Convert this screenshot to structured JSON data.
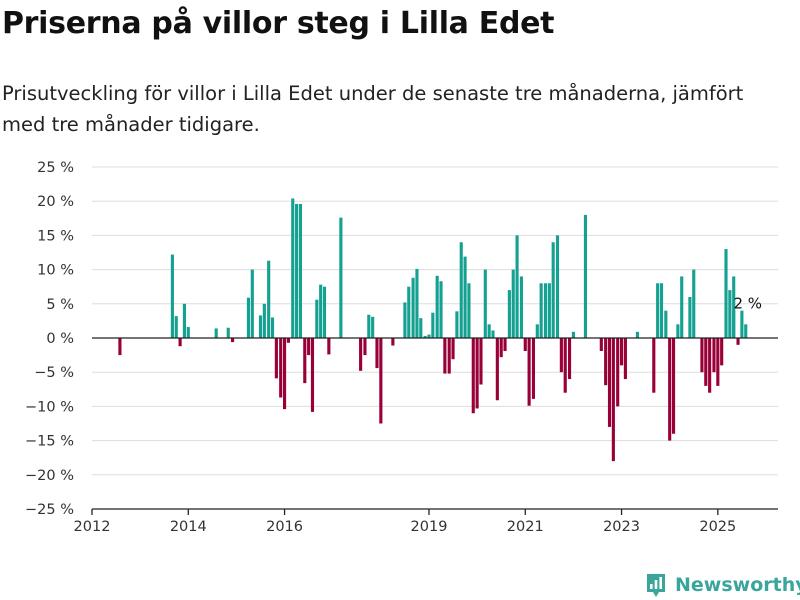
{
  "title": "Priserna på villor steg i Lilla Edet",
  "subtitle": "Prisutveckling för villor i Lilla Edet under de senaste tre månaderna, jämfört med tre månader tidigare.",
  "brand": {
    "name": "Newsworthy",
    "icon": "newsworthy-logo-icon"
  },
  "colors": {
    "positive": "#14a192",
    "negative": "#990038",
    "grid": "#dddddd",
    "axis": "#222222"
  },
  "chart_data": {
    "type": "bar",
    "title": "",
    "xlabel": "",
    "ylabel": "",
    "unit": "%",
    "ylim": [
      -25,
      25
    ],
    "xlim": [
      2012.0,
      2026.25
    ],
    "grid": true,
    "y_ticks": [
      25,
      20,
      15,
      10,
      5,
      0,
      -5,
      -10,
      -15,
      -20,
      -25
    ],
    "y_tick_labels": [
      "25 %",
      "20 %",
      "15 %",
      "10 %",
      "5 %",
      "0 %",
      "−5 %",
      "−10 %",
      "−15 %",
      "−20 %",
      "−25 %"
    ],
    "x_ticks": [
      2012,
      2014,
      2016,
      2019,
      2021,
      2023,
      2025
    ],
    "x_tick_labels": [
      "2012",
      "2014",
      "2016",
      "2019",
      "2021",
      "2023",
      "2025"
    ],
    "annotation": {
      "label": "2 %",
      "x": 2025.58,
      "y": 2
    },
    "points": [
      {
        "x": 2012.58,
        "y": -2.5
      },
      {
        "x": 2013.67,
        "y": 12.2
      },
      {
        "x": 2013.75,
        "y": 3.2
      },
      {
        "x": 2013.83,
        "y": -1.2
      },
      {
        "x": 2013.92,
        "y": 5.0
      },
      {
        "x": 2014.0,
        "y": 1.6
      },
      {
        "x": 2014.58,
        "y": 1.4
      },
      {
        "x": 2014.83,
        "y": 1.5
      },
      {
        "x": 2014.92,
        "y": -0.6
      },
      {
        "x": 2015.25,
        "y": 5.9
      },
      {
        "x": 2015.33,
        "y": 10.0
      },
      {
        "x": 2015.5,
        "y": 3.3
      },
      {
        "x": 2015.58,
        "y": 5.0
      },
      {
        "x": 2015.67,
        "y": 11.3
      },
      {
        "x": 2015.75,
        "y": 3.0
      },
      {
        "x": 2015.83,
        "y": -5.9
      },
      {
        "x": 2015.92,
        "y": -8.7
      },
      {
        "x": 2016.0,
        "y": -10.4
      },
      {
        "x": 2016.08,
        "y": -0.7
      },
      {
        "x": 2016.17,
        "y": 20.4
      },
      {
        "x": 2016.25,
        "y": 19.6
      },
      {
        "x": 2016.33,
        "y": 19.6
      },
      {
        "x": 2016.42,
        "y": -6.6
      },
      {
        "x": 2016.5,
        "y": -2.5
      },
      {
        "x": 2016.58,
        "y": -10.8
      },
      {
        "x": 2016.67,
        "y": 5.6
      },
      {
        "x": 2016.75,
        "y": 7.8
      },
      {
        "x": 2016.83,
        "y": 7.5
      },
      {
        "x": 2016.92,
        "y": -2.4
      },
      {
        "x": 2017.17,
        "y": 17.6
      },
      {
        "x": 2017.58,
        "y": -4.8
      },
      {
        "x": 2017.67,
        "y": -2.5
      },
      {
        "x": 2017.75,
        "y": 3.4
      },
      {
        "x": 2017.83,
        "y": 3.1
      },
      {
        "x": 2017.92,
        "y": -4.4
      },
      {
        "x": 2018.0,
        "y": -12.5
      },
      {
        "x": 2018.25,
        "y": -1.1
      },
      {
        "x": 2018.5,
        "y": 5.2
      },
      {
        "x": 2018.58,
        "y": 7.5
      },
      {
        "x": 2018.67,
        "y": 8.8
      },
      {
        "x": 2018.75,
        "y": 10.1
      },
      {
        "x": 2018.83,
        "y": 2.9
      },
      {
        "x": 2018.92,
        "y": 0.3
      },
      {
        "x": 2019.0,
        "y": 0.5
      },
      {
        "x": 2019.08,
        "y": 3.7
      },
      {
        "x": 2019.17,
        "y": 9.1
      },
      {
        "x": 2019.25,
        "y": 8.3
      },
      {
        "x": 2019.33,
        "y": -5.2
      },
      {
        "x": 2019.42,
        "y": -5.2
      },
      {
        "x": 2019.5,
        "y": -3.1
      },
      {
        "x": 2019.58,
        "y": 3.9
      },
      {
        "x": 2019.67,
        "y": 14.0
      },
      {
        "x": 2019.75,
        "y": 11.9
      },
      {
        "x": 2019.83,
        "y": 8.0
      },
      {
        "x": 2019.92,
        "y": -11.0
      },
      {
        "x": 2020.0,
        "y": -10.3
      },
      {
        "x": 2020.08,
        "y": -6.8
      },
      {
        "x": 2020.17,
        "y": 10.0
      },
      {
        "x": 2020.25,
        "y": 2.0
      },
      {
        "x": 2020.33,
        "y": 1.1
      },
      {
        "x": 2020.42,
        "y": -9.1
      },
      {
        "x": 2020.5,
        "y": -2.8
      },
      {
        "x": 2020.58,
        "y": -1.9
      },
      {
        "x": 2020.67,
        "y": 7.0
      },
      {
        "x": 2020.75,
        "y": 10.0
      },
      {
        "x": 2020.83,
        "y": 15.0
      },
      {
        "x": 2020.92,
        "y": 9.0
      },
      {
        "x": 2021.0,
        "y": -1.9
      },
      {
        "x": 2021.08,
        "y": -9.9
      },
      {
        "x": 2021.17,
        "y": -8.9
      },
      {
        "x": 2021.25,
        "y": 2.0
      },
      {
        "x": 2021.33,
        "y": 8.0
      },
      {
        "x": 2021.42,
        "y": 8.0
      },
      {
        "x": 2021.5,
        "y": 8.0
      },
      {
        "x": 2021.58,
        "y": 14.0
      },
      {
        "x": 2021.67,
        "y": 15.0
      },
      {
        "x": 2021.75,
        "y": -5.0
      },
      {
        "x": 2021.83,
        "y": -8.0
      },
      {
        "x": 2021.92,
        "y": -6.0
      },
      {
        "x": 2022.0,
        "y": 0.9
      },
      {
        "x": 2022.25,
        "y": 18.0
      },
      {
        "x": 2022.58,
        "y": -1.9
      },
      {
        "x": 2022.67,
        "y": -6.9
      },
      {
        "x": 2022.75,
        "y": -13.0
      },
      {
        "x": 2022.83,
        "y": -18.0
      },
      {
        "x": 2022.92,
        "y": -10.0
      },
      {
        "x": 2023.0,
        "y": -4.0
      },
      {
        "x": 2023.08,
        "y": -6.0
      },
      {
        "x": 2023.33,
        "y": 0.9
      },
      {
        "x": 2023.67,
        "y": -8.0
      },
      {
        "x": 2023.75,
        "y": 8.0
      },
      {
        "x": 2023.83,
        "y": 8.0
      },
      {
        "x": 2023.92,
        "y": 4.0
      },
      {
        "x": 2024.0,
        "y": -15.0
      },
      {
        "x": 2024.08,
        "y": -14.0
      },
      {
        "x": 2024.17,
        "y": 2.0
      },
      {
        "x": 2024.25,
        "y": 9.0
      },
      {
        "x": 2024.42,
        "y": 6.0
      },
      {
        "x": 2024.5,
        "y": 10.0
      },
      {
        "x": 2024.67,
        "y": -5.0
      },
      {
        "x": 2024.75,
        "y": -7.0
      },
      {
        "x": 2024.83,
        "y": -8.0
      },
      {
        "x": 2024.92,
        "y": -5.0
      },
      {
        "x": 2025.0,
        "y": -7.0
      },
      {
        "x": 2025.08,
        "y": -4.0
      },
      {
        "x": 2025.17,
        "y": 13.0
      },
      {
        "x": 2025.33,
        "y": 9.0
      },
      {
        "x": 2025.25,
        "y": 7.0
      },
      {
        "x": 2025.33,
        "y": 4.0
      },
      {
        "x": 2025.42,
        "y": -1.0
      },
      {
        "x": 2025.5,
        "y": 4.0
      },
      {
        "x": 2025.58,
        "y": 2.0
      }
    ]
  }
}
